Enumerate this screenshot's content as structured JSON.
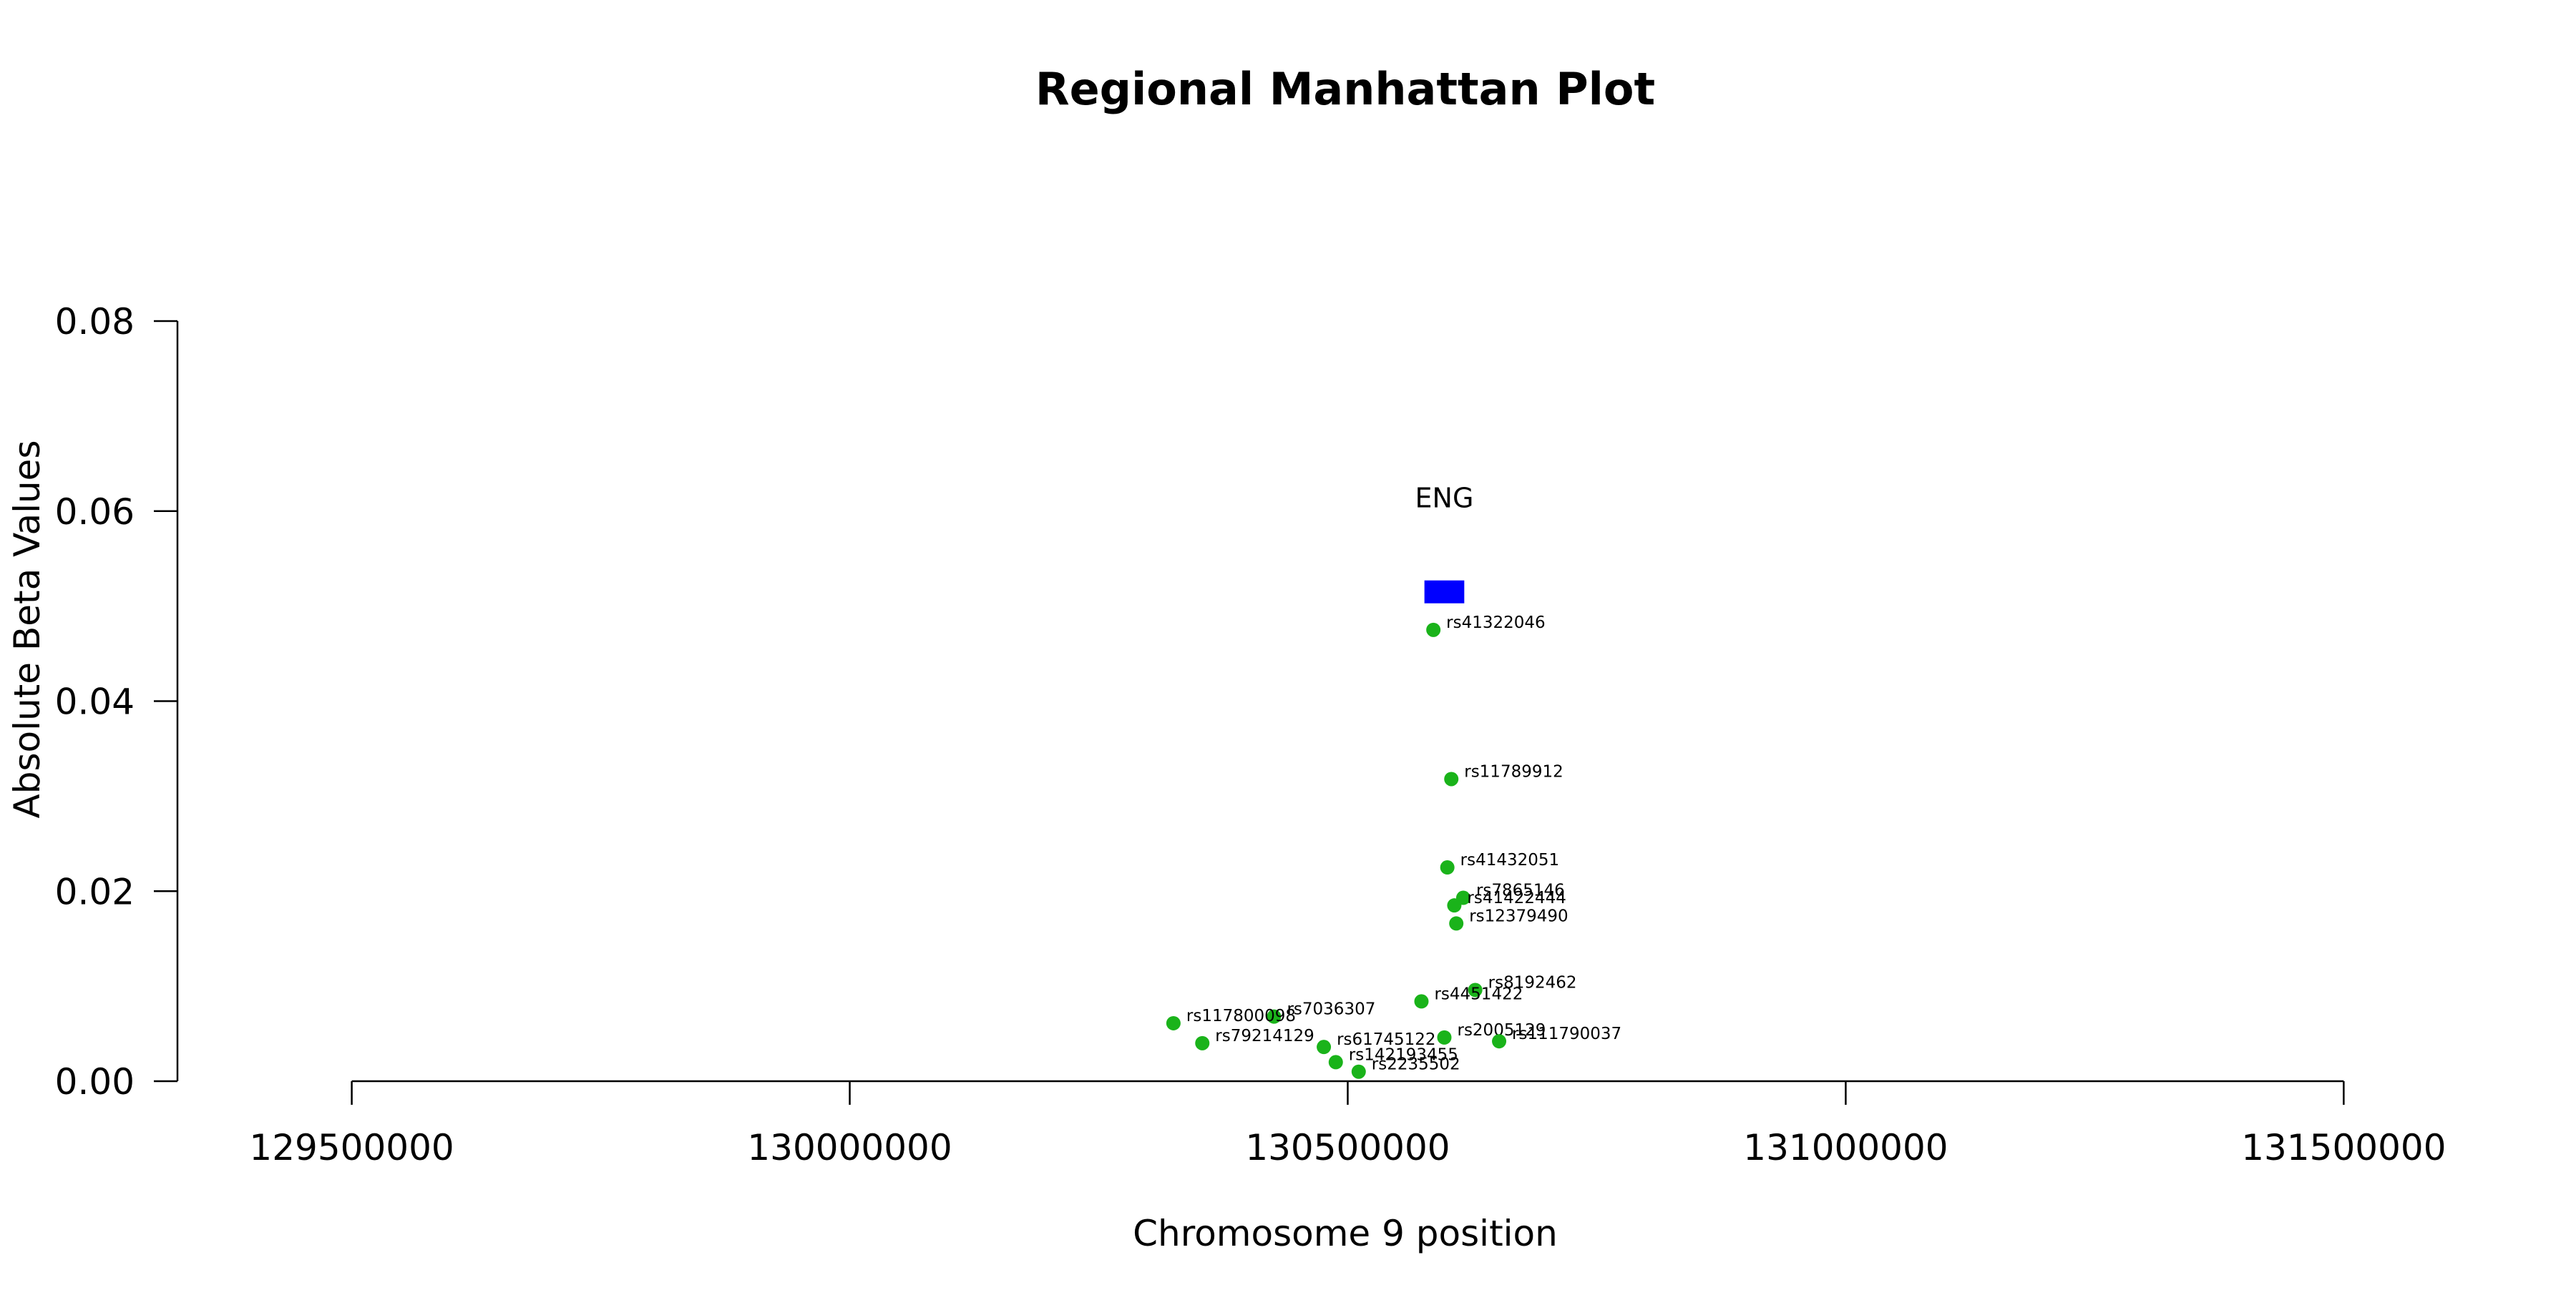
{
  "chart_data": {
    "type": "scatter",
    "title": "Regional Manhattan Plot",
    "xlabel": "Chromosome 9 position",
    "ylabel": "Absolute Beta Values",
    "xlim": [
      129325000,
      131670000
    ],
    "ylim": [
      0,
      0.08
    ],
    "x_ticks": [
      129500000,
      130000000,
      130500000,
      131000000,
      131500000
    ],
    "x_tick_labels": [
      "129500000",
      "130000000",
      "130500000",
      "131000000",
      "131500000"
    ],
    "y_ticks": [
      0.0,
      0.02,
      0.04,
      0.06,
      0.08
    ],
    "y_tick_labels": [
      "0.00",
      "0.02",
      "0.04",
      "0.06",
      "0.08"
    ],
    "grid": false,
    "point_color": "#1ab31a",
    "gene_color": "#0000ff",
    "genes": [
      {
        "name": "ENG",
        "start": 130577000,
        "end": 130617000,
        "y": 0.0515
      }
    ],
    "points": [
      {
        "label": "rs41322046",
        "x": 130586000,
        "y": 0.0475
      },
      {
        "label": "rs11789912",
        "x": 130604000,
        "y": 0.0318
      },
      {
        "label": "rs41432051",
        "x": 130600000,
        "y": 0.0225
      },
      {
        "label": "rs7865146",
        "x": 130616000,
        "y": 0.0193
      },
      {
        "label": "rs41422444",
        "x": 130607000,
        "y": 0.0185
      },
      {
        "label": "rs12379490",
        "x": 130609000,
        "y": 0.0166
      },
      {
        "label": "rs8192462",
        "x": 130628000,
        "y": 0.0096
      },
      {
        "label": "rs4451422",
        "x": 130574000,
        "y": 0.0084
      },
      {
        "label": "rs7036307",
        "x": 130426000,
        "y": 0.0068
      },
      {
        "label": "rs117800098",
        "x": 130325000,
        "y": 0.0061
      },
      {
        "label": "rs2005129",
        "x": 130597000,
        "y": 0.0046
      },
      {
        "label": "rs111790037",
        "x": 130652000,
        "y": 0.0042
      },
      {
        "label": "rs79214129",
        "x": 130354000,
        "y": 0.004
      },
      {
        "label": "rs61745122",
        "x": 130476000,
        "y": 0.0036
      },
      {
        "label": "rs142193455",
        "x": 130488000,
        "y": 0.002
      },
      {
        "label": "rs2235502",
        "x": 130511000,
        "y": 0.001
      }
    ]
  }
}
